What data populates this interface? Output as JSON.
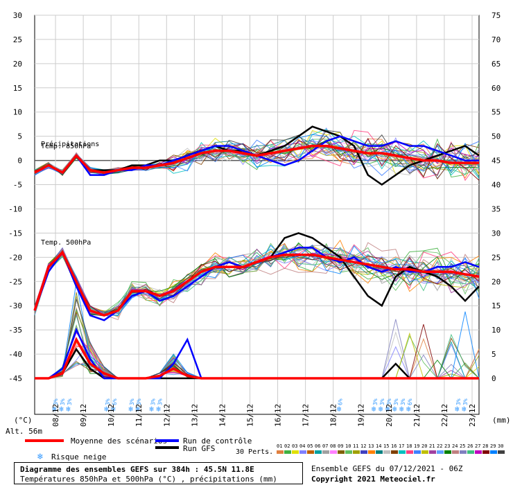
{
  "chart_data": {
    "type": "line",
    "title": "Diagramme des ensembles GEFS sur 384h : 45.5N 11.8E",
    "subtitle": "Températures 850hPa et 500hPa (°C) , précipitations (mm)",
    "run_info": "Ensemble GEFS du 07/12/2021 - 06Z",
    "copyright": "Copyright 2021 Meteociel.fr",
    "altitude": "Alt. 56m",
    "left_unit": "(°C)",
    "right_unit": "(mm)",
    "ylim_left": [
      -45,
      30
    ],
    "ylim_right": [
      0,
      75
    ],
    "left_ticks": [
      "30",
      "25",
      "20",
      "15",
      "10",
      "5",
      "0",
      "-5",
      "-10",
      "-15",
      "-20",
      "-25",
      "-30",
      "-35",
      "-40",
      "-45"
    ],
    "right_ticks": [
      "75",
      "70",
      "65",
      "60",
      "55",
      "50",
      "45",
      "40",
      "35",
      "30",
      "25",
      "20",
      "15",
      "10",
      "5",
      "0"
    ],
    "x_labels": [
      "08/12",
      "09/12",
      "10/12",
      "11/12",
      "12/12",
      "13/12",
      "14/12",
      "15/12",
      "16/12",
      "17/12",
      "18/12",
      "19/12",
      "20/12",
      "21/12",
      "22/12",
      "23/12"
    ],
    "hours": [
      0,
      12,
      24,
      36,
      48,
      60,
      72,
      84,
      96,
      108,
      120,
      132,
      144,
      156,
      168,
      180,
      192,
      204,
      216,
      228,
      240,
      252,
      264,
      276,
      288,
      300,
      312,
      324,
      336,
      348,
      360,
      372,
      384
    ],
    "annotations": [
      "Précipitations",
      "Temp. 850hPa",
      "Temp. 500hPa"
    ],
    "snow_marker": "❄",
    "snow_label": "3%",
    "snow_risk": [
      {
        "hour": 18,
        "pct": "3%"
      },
      {
        "hour": 24,
        "pct": "3%"
      },
      {
        "hour": 30,
        "pct": "3%"
      },
      {
        "hour": 63,
        "pct": "3%"
      },
      {
        "hour": 69,
        "pct": "6%"
      },
      {
        "hour": 84,
        "pct": "3%"
      },
      {
        "hour": 90,
        "pct": "3%"
      },
      {
        "hour": 102,
        "pct": "3%"
      },
      {
        "hour": 108,
        "pct": "3%"
      },
      {
        "hour": 264,
        "pct": "6%"
      },
      {
        "hour": 294,
        "pct": "3%"
      },
      {
        "hour": 300,
        "pct": "3%"
      },
      {
        "hour": 306,
        "pct": "3%"
      },
      {
        "hour": 312,
        "pct": "3%"
      },
      {
        "hour": 318,
        "pct": "3%"
      },
      {
        "hour": 324,
        "pct": "6%"
      },
      {
        "hour": 366,
        "pct": "3%"
      },
      {
        "hour": 372,
        "pct": "3%"
      }
    ],
    "series": [
      {
        "name": "Moyenne des scénarios",
        "color": "#ff0000",
        "t850": [
          -2.5,
          -1,
          -2.5,
          1,
          -2,
          -2.5,
          -2,
          -1.5,
          -1.5,
          -1,
          -0.5,
          0.5,
          1.5,
          2,
          2,
          1.5,
          1,
          1.5,
          2,
          2.5,
          3,
          3,
          2.5,
          2,
          1.5,
          1.5,
          1,
          0.5,
          0,
          0,
          -0.5,
          -0.5,
          -0.5
        ],
        "t500": [
          -31,
          -22,
          -19,
          -25,
          -31,
          -32,
          -31,
          -27,
          -27,
          -28,
          -27,
          -25,
          -23,
          -22,
          -22,
          -22,
          -21,
          -20,
          -19.5,
          -19.5,
          -19.5,
          -20,
          -20.5,
          -21,
          -21.5,
          -22,
          -22.5,
          -22.5,
          -23,
          -23,
          -23,
          -23.5,
          -24
        ],
        "precip": [
          0,
          0,
          1,
          8,
          3,
          1,
          0,
          0,
          0,
          0.5,
          2,
          0.5,
          0,
          0,
          0,
          0,
          0,
          0,
          0,
          0,
          0,
          0,
          0,
          0,
          0,
          0,
          0,
          0,
          0,
          0,
          0,
          0,
          0
        ]
      },
      {
        "name": "Run de contrôle",
        "color": "#0000ff",
        "t850": [
          -2.5,
          -1,
          -2.5,
          1,
          -3,
          -3,
          -2,
          -2,
          -1,
          -1,
          0,
          1,
          2,
          3,
          3,
          2,
          1,
          0,
          -1,
          0,
          2,
          4,
          5,
          4,
          3,
          3,
          4,
          3,
          3,
          2,
          1,
          0,
          0
        ],
        "t500": [
          -31,
          -23,
          -19,
          -26,
          -32,
          -33,
          -31,
          -28,
          -27,
          -29,
          -28,
          -26,
          -24,
          -22,
          -21,
          -22,
          -21,
          -20,
          -19,
          -18,
          -18,
          -20,
          -21,
          -20,
          -22,
          -23,
          -22,
          -23,
          -23,
          -22,
          -22,
          -21,
          -22
        ],
        "precip": [
          0,
          0,
          2,
          10,
          4,
          0,
          0,
          0,
          0,
          0,
          3,
          8,
          0,
          0,
          0,
          0,
          0,
          0,
          0,
          0,
          0,
          0,
          0,
          0,
          0,
          0,
          0,
          0,
          0,
          0,
          0,
          0,
          0
        ]
      },
      {
        "name": "Run GFS",
        "color": "#000000",
        "t850": [
          -2.5,
          -1,
          -2.5,
          1,
          -2,
          -2,
          -2,
          -1,
          -1,
          0,
          0,
          1,
          2,
          3,
          2,
          2,
          1,
          2,
          3,
          5,
          7,
          6,
          5,
          3,
          -3,
          -5,
          -3,
          -1,
          0,
          1,
          2,
          3,
          1
        ],
        "t500": [
          -31,
          -22,
          -19,
          -26,
          -31,
          -32,
          -31,
          -27,
          -27,
          -28,
          -27,
          -25,
          -23,
          -22,
          -21,
          -22,
          -21,
          -20,
          -16,
          -15,
          -16,
          -18,
          -20,
          -24,
          -28,
          -30,
          -24,
          -22,
          -23,
          -24,
          -26,
          -29,
          -26
        ],
        "precip": [
          0,
          0,
          1,
          6,
          2,
          0,
          0,
          0,
          0,
          0,
          0,
          0,
          0,
          0,
          0,
          0,
          0,
          0,
          0,
          0,
          0,
          0,
          0,
          0,
          0,
          0,
          3,
          0,
          0,
          0,
          0,
          0,
          0
        ]
      }
    ],
    "members": {
      "label": "30 Perts.",
      "numbers": [
        "01",
        "02",
        "03",
        "04",
        "05",
        "06",
        "07",
        "08",
        "09",
        "10",
        "11",
        "12",
        "13",
        "14",
        "15",
        "16",
        "17",
        "18",
        "19",
        "20",
        "21",
        "22",
        "23",
        "24",
        "25",
        "26",
        "27",
        "28",
        "29",
        "30"
      ],
      "colors": [
        "#e08040",
        "#40b040",
        "#e0e000",
        "#8080ff",
        "#c06000",
        "#00a0a0",
        "#a0a0a0",
        "#ff80ff",
        "#806000",
        "#60c060",
        "#a0a000",
        "#4040c0",
        "#ff8000",
        "#008080",
        "#c0c0c0",
        "#804000",
        "#00c0c0",
        "#ff4080",
        "#4080ff",
        "#c0c000",
        "#a040a0",
        "#60a0ff",
        "#008000",
        "#c08080",
        "#8080c0",
        "#40c080",
        "#c000c0",
        "#800000",
        "#0080ff",
        "#404040"
      ]
    },
    "legend": {
      "mean": "Moyenne des scénarios",
      "control": "Run de contrôle",
      "gfs": "Run GFS",
      "snow": "Risque neige"
    }
  }
}
